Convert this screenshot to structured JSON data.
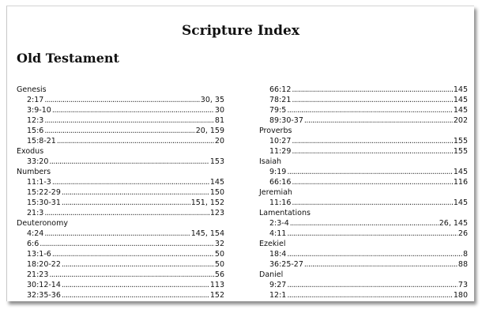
{
  "title": "Scripture Index",
  "section_title": "Old Testament",
  "columns": [
    [
      {
        "book": "Genesis"
      },
      {
        "ref": "2:17",
        "pages": "30, 35"
      },
      {
        "ref": "3:9-10",
        "pages": "30"
      },
      {
        "ref": "12:3",
        "pages": "81"
      },
      {
        "ref": "15:6",
        "pages": "20, 159"
      },
      {
        "ref": "15:8-21",
        "pages": "20"
      },
      {
        "book": "Exodus"
      },
      {
        "ref": "33:20",
        "pages": "153"
      },
      {
        "book": "Numbers"
      },
      {
        "ref": "11:1-3",
        "pages": "145"
      },
      {
        "ref": "15:22-29",
        "pages": "150"
      },
      {
        "ref": "15:30-31",
        "pages": "151, 152"
      },
      {
        "ref": "21:3",
        "pages": "123"
      },
      {
        "book": "Deuteronomy"
      },
      {
        "ref": "4:24",
        "pages": "145, 154"
      },
      {
        "ref": "6:6",
        "pages": "32"
      },
      {
        "ref": "13:1-6",
        "pages": "50"
      },
      {
        "ref": "18:20-22",
        "pages": "50"
      },
      {
        "ref": "21:23",
        "pages": "56"
      },
      {
        "ref": "30:12-14",
        "pages": "113"
      },
      {
        "ref": "32:35-36",
        "pages": "152"
      }
    ],
    [
      {
        "ref": "66:12",
        "pages": "145"
      },
      {
        "ref": "78:21",
        "pages": "145"
      },
      {
        "ref": "79:5",
        "pages": "145"
      },
      {
        "ref": "89:30-37",
        "pages": "202"
      },
      {
        "book": "Proverbs"
      },
      {
        "ref": "10:27",
        "pages": "155"
      },
      {
        "ref": "11:29",
        "pages": "155"
      },
      {
        "book": "Isaiah"
      },
      {
        "ref": "9:19",
        "pages": "145"
      },
      {
        "ref": "66:16",
        "pages": "116"
      },
      {
        "book": "Jeremiah"
      },
      {
        "ref": "11:16",
        "pages": "145"
      },
      {
        "book": "Lamentations"
      },
      {
        "ref": "2:3-4",
        "pages": "26, 145"
      },
      {
        "ref": "4:11",
        "pages": "26"
      },
      {
        "book": "Ezekiel"
      },
      {
        "ref": "18:4",
        "pages": "8"
      },
      {
        "ref": "36:25-27",
        "pages": "88"
      },
      {
        "book": "Daniel"
      },
      {
        "ref": "9:27",
        "pages": "73"
      },
      {
        "ref": "12:1",
        "pages": "180"
      }
    ]
  ]
}
